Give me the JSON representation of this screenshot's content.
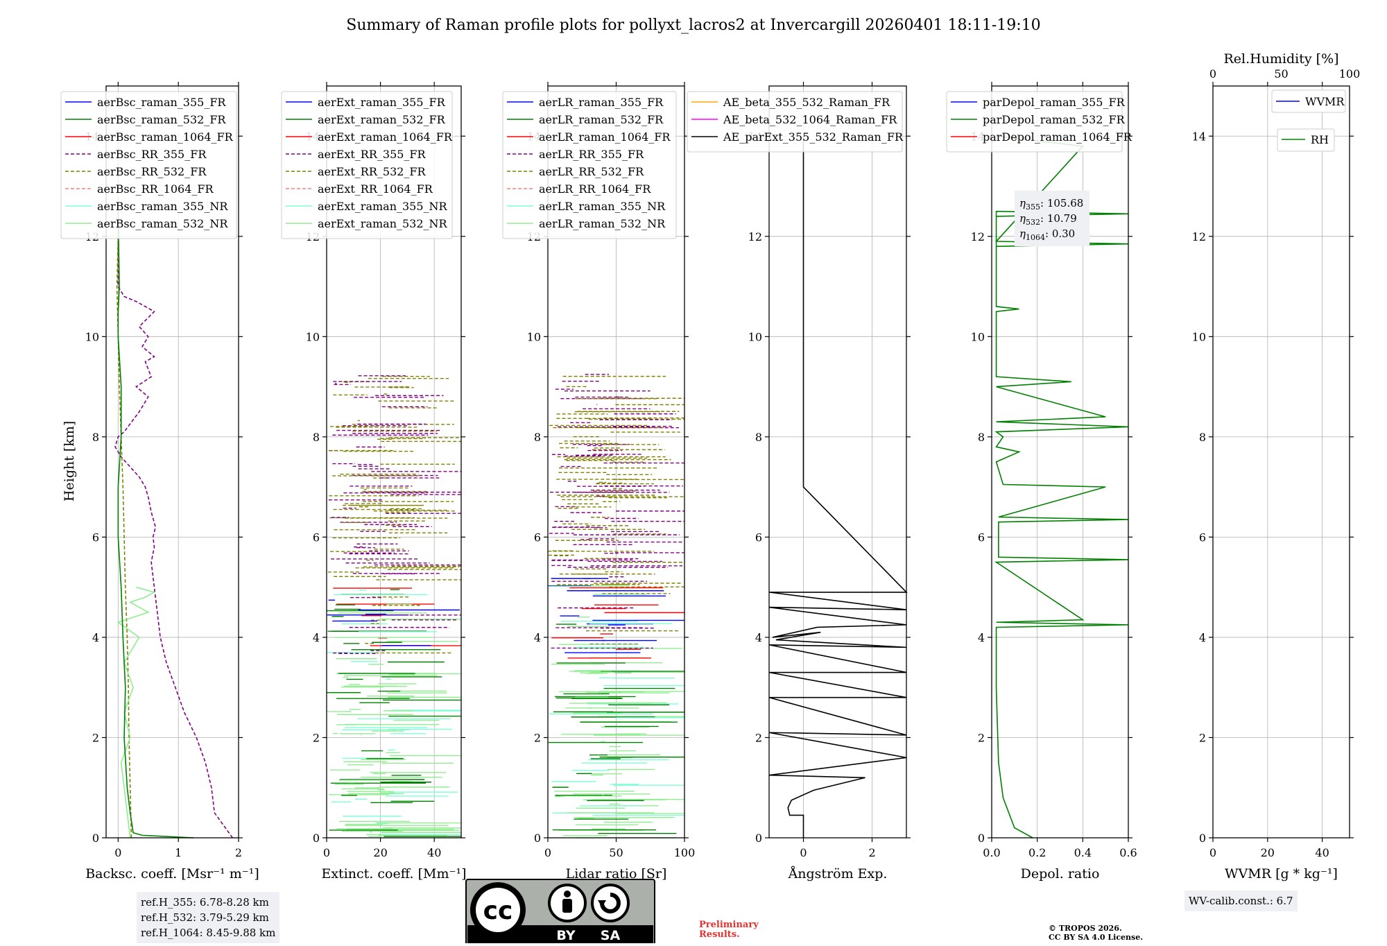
{
  "title": "Summary of Raman profile plots for pollyxt_lacros2 at Invercargill 20260401 18:11-19:10",
  "ylabel": "Height [km]",
  "colors": {
    "blue": "#0000ff",
    "green": "#008000",
    "red": "#ff0000",
    "purple": "#800080",
    "olive": "#808000",
    "salmon": "#fa8072",
    "cyan": "#7fffd4",
    "lightgreen": "#90ee90",
    "orange": "#ffa500",
    "magenta": "#ff00ff",
    "black": "#000000",
    "grid": "#b0b0b0"
  },
  "chart_data": [
    {
      "id": "backscatter",
      "type": "line",
      "xlabel": "Backsc. coeff. [Msr⁻¹ m⁻¹]",
      "xlim": [
        -0.2,
        2
      ],
      "ylim": [
        0,
        15
      ],
      "xticks": [
        "0",
        "1",
        "2"
      ],
      "yticks": [
        "0",
        "2",
        "4",
        "6",
        "8",
        "10",
        "12",
        "14"
      ],
      "legend": [
        {
          "label": "aerBsc_raman_355_FR",
          "color": "blue",
          "dash": false
        },
        {
          "label": "aerBsc_raman_532_FR",
          "color": "green",
          "dash": false
        },
        {
          "label": "aerBsc_raman_1064_FR",
          "color": "red",
          "dash": false
        },
        {
          "label": "aerBsc_RR_355_FR",
          "color": "purple",
          "dash": true
        },
        {
          "label": "aerBsc_RR_532_FR",
          "color": "olive",
          "dash": true
        },
        {
          "label": "aerBsc_RR_1064_FR",
          "color": "salmon",
          "dash": true
        },
        {
          "label": "aerBsc_raman_355_NR",
          "color": "cyan",
          "dash": false
        },
        {
          "label": "aerBsc_raman_532_NR",
          "color": "lightgreen",
          "dash": false
        }
      ],
      "series": [
        {
          "name": "aerBsc_RR_355_FR",
          "color": "purple",
          "dash": true,
          "x": [
            1.9,
            1.6,
            1.55,
            1.45,
            1.3,
            1.1,
            0.95,
            0.8,
            0.7,
            0.65,
            0.6,
            0.55,
            0.6,
            0.58,
            0.62,
            0.55,
            0.5,
            0.45,
            0.35,
            0.2,
            0.05,
            -0.05,
            0.0,
            0.1,
            0.35,
            0.5,
            0.3,
            0.55,
            0.45,
            0.6,
            0.4,
            0.5,
            0.35,
            0.6,
            0.3,
            0.1,
            0.0,
            0.0
          ],
          "y": [
            0.0,
            0.5,
            1.0,
            1.5,
            2.0,
            2.5,
            3.0,
            3.5,
            4.0,
            4.5,
            5.0,
            5.5,
            5.8,
            6.0,
            6.2,
            6.5,
            6.8,
            7.0,
            7.2,
            7.4,
            7.6,
            7.8,
            8.0,
            8.1,
            8.5,
            8.8,
            9.0,
            9.2,
            9.5,
            9.6,
            9.8,
            10.0,
            10.2,
            10.5,
            10.7,
            10.8,
            11.0,
            12.0
          ]
        },
        {
          "name": "aerBsc_RR_532_FR",
          "color": "olive",
          "dash": true,
          "x": [
            0.22,
            0.2,
            0.18,
            0.17,
            0.15,
            0.12,
            0.1,
            0.08,
            0.05,
            0.02,
            0.0,
            -0.02,
            0.0,
            0.0,
            0.0
          ],
          "y": [
            0.0,
            1.0,
            2.0,
            3.0,
            4.0,
            5.0,
            6.0,
            7.0,
            8.0,
            9.0,
            10.0,
            11.0,
            12.0,
            13.0,
            14.0
          ]
        },
        {
          "name": "aerBsc_raman_532_NR",
          "color": "lightgreen",
          "dash": false,
          "x": [
            0.2,
            0.15,
            0.1,
            0.05,
            0.2,
            0.1,
            0.25,
            0.1,
            0.35,
            0.0,
            0.5,
            0.2,
            0.45,
            0.6,
            0.3
          ],
          "y": [
            0.0,
            0.5,
            1.0,
            1.5,
            2.0,
            2.5,
            3.0,
            3.5,
            4.0,
            4.3,
            4.5,
            4.7,
            4.8,
            4.9,
            5.0
          ]
        },
        {
          "name": "aerBsc_raman_532_FR",
          "color": "green",
          "dash": false,
          "x": [
            1.25,
            0.4,
            0.25,
            0.2,
            0.15,
            0.1,
            0.12,
            0.08,
            0.05,
            0.0,
            0.0,
            0.05,
            0.05,
            0.0,
            0.0,
            0.02,
            0.0
          ],
          "y": [
            0.0,
            0.05,
            0.1,
            0.5,
            1.0,
            2.0,
            3.0,
            4.0,
            5.0,
            6.0,
            7.0,
            8.0,
            9.0,
            10.0,
            10.5,
            11.0,
            12.5
          ]
        }
      ]
    },
    {
      "id": "extinction",
      "type": "line",
      "xlabel": "Extinct. coeff. [Mm⁻¹]",
      "xlim": [
        0,
        50
      ],
      "ylim": [
        0,
        15
      ],
      "xticks": [
        "0",
        "20",
        "40"
      ],
      "yticks": [
        "0",
        "2",
        "4",
        "6",
        "8",
        "10",
        "12",
        "14"
      ],
      "legend": [
        {
          "label": "aerExt_raman_355_FR",
          "color": "blue",
          "dash": false
        },
        {
          "label": "aerExt_raman_532_FR",
          "color": "green",
          "dash": false
        },
        {
          "label": "aerExt_raman_1064_FR",
          "color": "red",
          "dash": false
        },
        {
          "label": "aerExt_RR_355_FR",
          "color": "purple",
          "dash": true
        },
        {
          "label": "aerExt_RR_532_FR",
          "color": "olive",
          "dash": true
        },
        {
          "label": "aerExt_RR_1064_FR",
          "color": "salmon",
          "dash": true
        },
        {
          "label": "aerExt_raman_355_NR",
          "color": "cyan",
          "dash": false
        },
        {
          "label": "aerExt_raman_532_NR",
          "color": "lightgreen",
          "dash": false
        }
      ]
    },
    {
      "id": "lidarratio",
      "type": "line",
      "xlabel": "Lidar ratio [Sr]",
      "xlim": [
        0,
        100
      ],
      "ylim": [
        0,
        15
      ],
      "xticks": [
        "0",
        "50",
        "100"
      ],
      "yticks": [
        "0",
        "2",
        "4",
        "6",
        "8",
        "10",
        "12",
        "14"
      ],
      "legend": [
        {
          "label": "aerLR_raman_355_FR",
          "color": "blue",
          "dash": false
        },
        {
          "label": "aerLR_raman_532_FR",
          "color": "green",
          "dash": false
        },
        {
          "label": "aerLR_raman_1064_FR",
          "color": "red",
          "dash": false
        },
        {
          "label": "aerLR_RR_355_FR",
          "color": "purple",
          "dash": true
        },
        {
          "label": "aerLR_RR_532_FR",
          "color": "olive",
          "dash": true
        },
        {
          "label": "aerLR_RR_1064_FR",
          "color": "salmon",
          "dash": true
        },
        {
          "label": "aerLR_raman_355_NR",
          "color": "cyan",
          "dash": false
        },
        {
          "label": "aerLR_raman_532_NR",
          "color": "lightgreen",
          "dash": false
        }
      ]
    },
    {
      "id": "angstrom",
      "type": "line",
      "xlabel": "Ångström Exp.",
      "xlim": [
        -1,
        3
      ],
      "ylim": [
        0,
        15
      ],
      "xticks": [
        "0",
        "2"
      ],
      "yticks": [
        "0",
        "2",
        "4",
        "6",
        "8",
        "10",
        "12",
        "14"
      ],
      "legend": [
        {
          "label": "AE_beta_355_532_Raman_FR",
          "color": "orange",
          "dash": false
        },
        {
          "label": "AE_beta_532_1064_Raman_FR",
          "color": "magenta",
          "dash": false
        },
        {
          "label": "AE_parExt_355_532_Raman_FR",
          "color": "black",
          "dash": false
        }
      ],
      "series": [
        {
          "name": "AE_parExt_355_532_Raman_FR",
          "color": "black",
          "dash": false,
          "x": [
            0.0,
            0.0,
            -0.4,
            -0.45,
            -0.35,
            0.3,
            1.8,
            -1.0,
            3.0,
            -1.0,
            3.0,
            -1.0,
            3.0,
            -1.0,
            3.0,
            -1.0,
            3.0,
            -0.8,
            0.5,
            -0.9,
            0.4,
            3.0,
            -1.0,
            3.0,
            -1.0,
            3.0,
            0.0,
            0.0
          ],
          "y": [
            0.0,
            0.45,
            0.45,
            0.6,
            0.75,
            0.95,
            1.2,
            1.25,
            1.6,
            2.1,
            2.05,
            2.8,
            2.8,
            3.3,
            3.3,
            3.85,
            3.8,
            3.95,
            4.1,
            4.0,
            4.2,
            4.25,
            4.6,
            4.55,
            4.9,
            4.9,
            7.0,
            14.0
          ]
        }
      ]
    },
    {
      "id": "depol",
      "type": "line",
      "xlabel": "Depol. ratio",
      "xlim": [
        0,
        0.6
      ],
      "ylim": [
        0,
        15
      ],
      "xticks": [
        "0.0",
        "0.2",
        "0.4",
        "0.6"
      ],
      "yticks": [
        "0",
        "2",
        "4",
        "6",
        "8",
        "10",
        "12",
        "14"
      ],
      "legend": [
        {
          "label": "parDepol_raman_355_FR",
          "color": "blue",
          "dash": false
        },
        {
          "label": "parDepol_raman_532_FR",
          "color": "green",
          "dash": false
        },
        {
          "label": "parDepol_raman_1064_FR",
          "color": "red",
          "dash": false
        }
      ],
      "series": [
        {
          "name": "parDepol_raman_532_FR",
          "color": "green",
          "dash": false,
          "x": [
            0.18,
            0.1,
            0.05,
            0.03,
            0.02,
            0.02,
            0.6,
            0.02,
            0.4,
            0.02,
            0.6,
            0.03,
            0.03,
            0.6,
            0.03,
            0.5,
            0.05,
            0.02,
            0.12,
            0.02,
            0.05,
            0.02,
            0.6,
            0.02,
            0.5,
            0.02,
            0.35,
            0.02,
            0.02,
            0.12,
            0.02,
            0.02,
            0.6,
            0.02,
            0.02,
            0.6,
            0.02,
            0.4,
            0.02
          ],
          "y": [
            0.0,
            0.2,
            0.8,
            1.5,
            3.0,
            4.2,
            4.25,
            4.3,
            4.35,
            5.5,
            5.55,
            5.6,
            6.3,
            6.35,
            6.4,
            7.0,
            7.05,
            7.5,
            7.7,
            7.8,
            8.0,
            8.1,
            8.2,
            8.3,
            8.4,
            9.0,
            9.1,
            9.2,
            10.5,
            10.55,
            10.6,
            12.4,
            12.45,
            12.5,
            11.8,
            11.85,
            11.9,
            13.8,
            14.0
          ]
        }
      ],
      "annotation": {
        "eta355": "105.68",
        "eta532": "10.79",
        "eta1064": "0.30"
      }
    },
    {
      "id": "wvmr",
      "type": "line",
      "xlabel": "WVMR [g * kg⁻¹]",
      "xlim": [
        0,
        50
      ],
      "ylim": [
        0,
        15
      ],
      "xticks": [
        "0",
        "20",
        "40"
      ],
      "yticks": [
        "0",
        "2",
        "4",
        "6",
        "8",
        "10",
        "12",
        "14"
      ],
      "top_axis_label": "Rel.Humidity [%]",
      "top_xticks": [
        "0",
        "50",
        "100"
      ],
      "legend": [
        {
          "label": "WVMR",
          "color": "blue",
          "dash": false
        },
        {
          "label": "RH",
          "color": "green",
          "dash": false
        }
      ]
    }
  ],
  "ref_heights": [
    "ref.H_355: 6.78-8.28 km",
    "ref.H_532: 3.79-5.29 km",
    "ref.H_1064: 8.45-9.88 km"
  ],
  "wv_calib": "WV-calib.const.: 6.7",
  "preliminary": [
    "Preliminary",
    "Results."
  ],
  "copyright": [
    "© TROPOS 2026.",
    "CC BY SA 4.0 License."
  ],
  "license_badge": {
    "top": "cc",
    "left_label": "BY",
    "right_label": "SA"
  }
}
